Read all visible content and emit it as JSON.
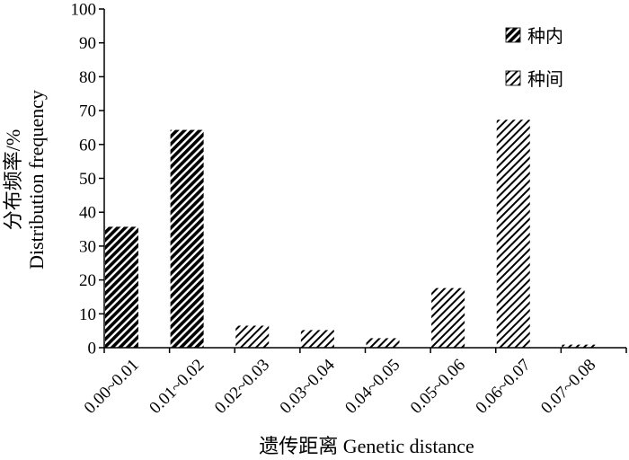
{
  "chart_data": {
    "type": "bar",
    "categories": [
      "0.00~0.01",
      "0.01~0.02",
      "0.02~0.03",
      "0.03~0.04",
      "0.04~0.05",
      "0.05~0.06",
      "0.06~0.07",
      "0.07~0.08"
    ],
    "series": [
      {
        "name": "种内",
        "values": [
          35.7,
          64.3,
          0,
          0,
          0,
          0,
          0,
          0
        ],
        "pattern": "dense-diagonal-dark"
      },
      {
        "name": "种间",
        "values": [
          0,
          0,
          6.5,
          5.2,
          2.8,
          17.6,
          67.3,
          0.9
        ],
        "pattern": "sparse-diagonal"
      }
    ],
    "xlabel": "遗传距离  Genetic distance",
    "ylabel_line1": "分布频率/%",
    "ylabel_line2": "Distribution frequency",
    "ylim": [
      0,
      100
    ],
    "yticks": [
      0,
      10,
      20,
      30,
      40,
      50,
      60,
      70,
      80,
      90,
      100
    ],
    "legend_position": "top-right",
    "grid": false,
    "colors": {
      "bar_fill": "#000000",
      "axis": "#000000",
      "background": "#ffffff"
    }
  }
}
